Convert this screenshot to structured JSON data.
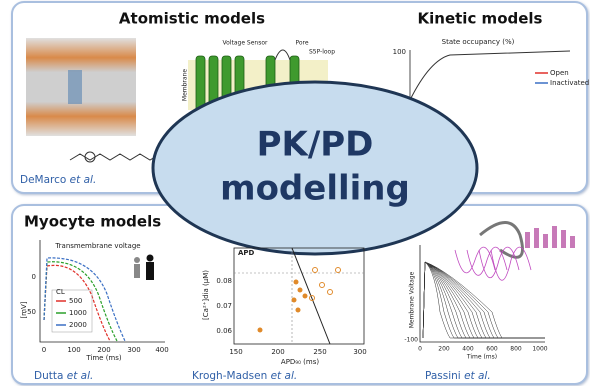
{
  "top_panel": {
    "title_left": "Atomistic models",
    "title_right": "Kinetic models",
    "citation": {
      "author": "DeMarco",
      "suffix": "et al."
    }
  },
  "bottom_panel": {
    "title": "Myocyte models",
    "citations": [
      {
        "author": "Dutta",
        "suffix": "et al."
      },
      {
        "author": "Krogh-Madsen",
        "suffix": "et al."
      },
      {
        "author": "Passini",
        "suffix": "et al."
      }
    ]
  },
  "center": {
    "lines": [
      "PK/PD",
      "modelling"
    ]
  },
  "structure_figure": {
    "labels": [
      "Voltage Sensor",
      "Pore",
      "S5P-loop"
    ],
    "side_label": "Membrane"
  },
  "kinetic_chart": {
    "title": "State occupancy (%)",
    "ytick": "100",
    "legend": [
      "Open",
      "Inactivated"
    ]
  },
  "myocyte_chart": {
    "title": "Transmembrane voltage",
    "legend_title": "CL",
    "legend": [
      "500",
      "1000",
      "2000"
    ],
    "yticks": [
      "0",
      "-50"
    ],
    "ylabel": "[mV]",
    "xticks": [
      "0",
      "100",
      "200",
      "300",
      "400"
    ],
    "xlabel": "Time (ms)"
  },
  "calcium_chart": {
    "annotation": "APD",
    "ylabel": "[Ca²⁺]dia (μM)",
    "yticks": [
      "0.08",
      "0.07",
      "0.06"
    ],
    "xticks": [
      "150",
      "200",
      "250",
      "300"
    ],
    "xlabel": "APD₉₀ (ms)"
  },
  "passini_chart": {
    "ylabel": "Membrane Voltage",
    "ytick": "-100",
    "xticks": [
      "0",
      "200",
      "400",
      "600",
      "800",
      "1000"
    ],
    "xlabel": "Time (ms)"
  }
}
